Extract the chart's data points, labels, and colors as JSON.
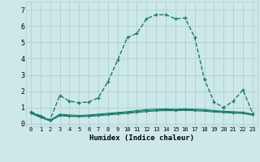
{
  "xlabel": "Humidex (Indice chaleur)",
  "background_color": "#cde8e8",
  "grid_color": "#b0d0d0",
  "line_color": "#1a7a6e",
  "xlim": [
    -0.5,
    23.5
  ],
  "ylim": [
    -0.15,
    7.5
  ],
  "xticks": [
    0,
    1,
    2,
    3,
    4,
    5,
    6,
    7,
    8,
    9,
    10,
    11,
    12,
    13,
    14,
    15,
    16,
    17,
    18,
    19,
    20,
    21,
    22,
    23
  ],
  "yticks": [
    0,
    1,
    2,
    3,
    4,
    5,
    6,
    7
  ],
  "series": [
    {
      "x": [
        0,
        1,
        2,
        3,
        4,
        5,
        6,
        7,
        8,
        9,
        10,
        11,
        12,
        13,
        14,
        15,
        16,
        17,
        18,
        19,
        20,
        21,
        22,
        23
      ],
      "y": [
        0.75,
        0.5,
        0.25,
        1.75,
        1.4,
        1.3,
        1.35,
        1.6,
        2.6,
        3.9,
        5.3,
        5.55,
        6.45,
        6.7,
        6.7,
        6.45,
        6.5,
        5.3,
        2.75,
        1.35,
        1.0,
        1.4,
        2.1,
        0.65
      ],
      "linewidth": 1.0,
      "markersize": 2.5,
      "linestyle": "-"
    },
    {
      "x": [
        0,
        1,
        2,
        3,
        4,
        5,
        6,
        7,
        8,
        9,
        10,
        11,
        12,
        13,
        14,
        15,
        16,
        17,
        18,
        19,
        20,
        21,
        22,
        23
      ],
      "y": [
        0.72,
        0.45,
        0.22,
        0.6,
        0.55,
        0.52,
        0.55,
        0.6,
        0.65,
        0.7,
        0.75,
        0.82,
        0.88,
        0.9,
        0.92,
        0.9,
        0.92,
        0.9,
        0.88,
        0.82,
        0.78,
        0.75,
        0.72,
        0.6
      ],
      "linewidth": 0.8,
      "markersize": 1.5,
      "linestyle": "-"
    },
    {
      "x": [
        0,
        1,
        2,
        3,
        4,
        5,
        6,
        7,
        8,
        9,
        10,
        11,
        12,
        13,
        14,
        15,
        16,
        17,
        18,
        19,
        20,
        21,
        22,
        23
      ],
      "y": [
        0.68,
        0.42,
        0.2,
        0.55,
        0.5,
        0.48,
        0.5,
        0.55,
        0.6,
        0.65,
        0.7,
        0.76,
        0.82,
        0.85,
        0.87,
        0.86,
        0.88,
        0.86,
        0.83,
        0.78,
        0.74,
        0.7,
        0.68,
        0.57
      ],
      "linewidth": 0.8,
      "markersize": 1.5,
      "linestyle": "-"
    },
    {
      "x": [
        0,
        1,
        2,
        3,
        4,
        5,
        6,
        7,
        8,
        9,
        10,
        11,
        12,
        13,
        14,
        15,
        16,
        17,
        18,
        19,
        20,
        21,
        22,
        23
      ],
      "y": [
        0.65,
        0.4,
        0.18,
        0.5,
        0.46,
        0.44,
        0.46,
        0.5,
        0.55,
        0.6,
        0.65,
        0.7,
        0.76,
        0.8,
        0.82,
        0.81,
        0.83,
        0.81,
        0.78,
        0.73,
        0.7,
        0.66,
        0.64,
        0.54
      ],
      "linewidth": 0.8,
      "markersize": 1.5,
      "linestyle": "-"
    }
  ]
}
